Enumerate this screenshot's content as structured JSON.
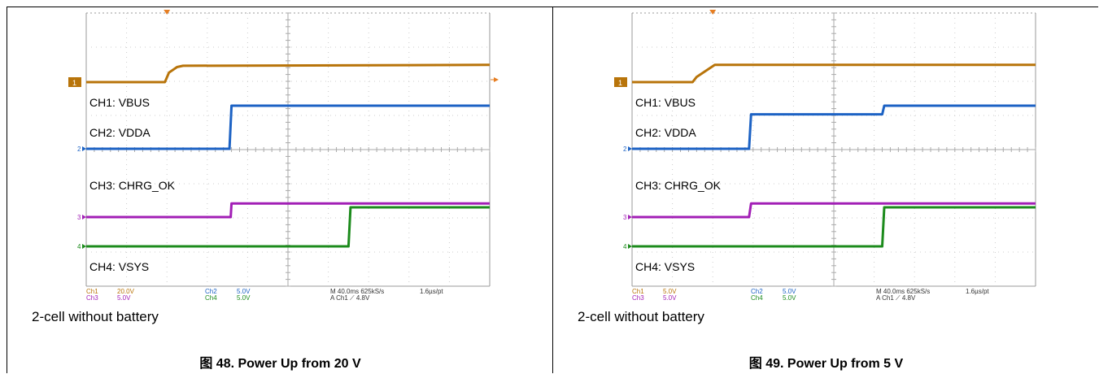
{
  "chart_data": [
    {
      "type": "line",
      "title": "图 48. Power Up from 20 V",
      "note": "2-cell without battery",
      "xlabel": "",
      "ylabel": "",
      "channel_labels": [
        "CH1: VBUS",
        "CH2: VDDA",
        "CH3: CHRG_OK",
        "CH4: VSYS"
      ],
      "markers": [
        "1",
        "2",
        "3",
        "4"
      ],
      "scope_settings": {
        "ch1": "Ch1",
        "ch1_scale": "20.0V",
        "ch2": "Ch2",
        "ch2_scale": "5.0V",
        "ch3": "Ch3",
        "ch3_scale": "5.0V",
        "ch4": "Ch4",
        "ch4_scale": "5.0V",
        "timebase": "M 40.0ms 625kS/s",
        "resolution": "1.6µs/pt",
        "trigger": "A  Ch1  ⟋  4.8V"
      },
      "x": [
        0,
        1.9,
        2.0,
        2.2,
        2.4,
        3.6,
        5.8,
        10
      ],
      "series": [
        {
          "name": "CH1: VBUS",
          "color": "#B8740A",
          "points": [
            [
              0,
              0.0
            ],
            [
              1.95,
              0.0
            ],
            [
              2.05,
              0.22
            ],
            [
              2.25,
              0.35
            ],
            [
              2.4,
              0.38
            ],
            [
              10,
              0.4
            ]
          ]
        },
        {
          "name": "CH2: VDDA",
          "color": "#1C62C4",
          "points": [
            [
              0,
              0.0
            ],
            [
              3.55,
              0.0
            ],
            [
              3.6,
              1.0
            ],
            [
              10,
              1.0
            ]
          ]
        },
        {
          "name": "CH3: CHRG_OK",
          "color": "#A21FB6",
          "points": [
            [
              0,
              0.0
            ],
            [
              3.58,
              0.0
            ],
            [
              3.6,
              0.6
            ],
            [
              10,
              0.6
            ]
          ]
        },
        {
          "name": "CH4: VSYS",
          "color": "#1C8B1C",
          "points": [
            [
              0,
              0.0
            ],
            [
              6.5,
              0.0
            ],
            [
              6.55,
              1.0
            ],
            [
              10,
              1.0
            ]
          ]
        }
      ],
      "markers_colors": [
        "#B8740A",
        "#1C62C4",
        "#A21FB6",
        "#1C8B1C"
      ]
    },
    {
      "type": "line",
      "title": "图 49. Power Up from 5 V",
      "note": "2-cell without battery",
      "xlabel": "",
      "ylabel": "",
      "channel_labels": [
        "CH1: VBUS",
        "CH2: VDDA",
        "CH3: CHRG_OK",
        "CH4: VSYS"
      ],
      "markers": [
        "1",
        "2",
        "3",
        "4"
      ],
      "scope_settings": {
        "ch1": "Ch1",
        "ch1_scale": "5.0V",
        "ch2": "Ch2",
        "ch2_scale": "5.0V",
        "ch3": "Ch3",
        "ch3_scale": "5.0V",
        "ch4": "Ch4",
        "ch4_scale": "5.0V",
        "timebase": "M 40.0ms 625kS/s",
        "resolution": "1.6µs/pt",
        "trigger": "A  Ch1  ⟋  4.8V"
      },
      "series": [
        {
          "name": "CH1: VBUS",
          "color": "#B8740A",
          "points": [
            [
              0,
              0.0
            ],
            [
              1.5,
              0.0
            ],
            [
              1.6,
              0.12
            ],
            [
              2.05,
              0.4
            ],
            [
              10,
              0.4
            ]
          ]
        },
        {
          "name": "CH2: VDDA",
          "color": "#1C62C4",
          "points": [
            [
              0,
              0.0
            ],
            [
              2.9,
              0.0
            ],
            [
              2.95,
              0.8
            ],
            [
              6.2,
              0.8
            ],
            [
              6.25,
              1.0
            ],
            [
              10,
              1.0
            ]
          ]
        },
        {
          "name": "CH3: CHRG_OK",
          "color": "#A21FB6",
          "points": [
            [
              0,
              0.0
            ],
            [
              2.9,
              0.0
            ],
            [
              2.95,
              0.6
            ],
            [
              10,
              0.6
            ]
          ]
        },
        {
          "name": "CH4: VSYS",
          "color": "#1C8B1C",
          "points": [
            [
              0,
              0.0
            ],
            [
              6.2,
              0.0
            ],
            [
              6.25,
              1.0
            ],
            [
              10,
              1.0
            ]
          ]
        }
      ],
      "markers_colors": [
        "#B8740A",
        "#1C62C4",
        "#A21FB6",
        "#1C8B1C"
      ]
    }
  ]
}
